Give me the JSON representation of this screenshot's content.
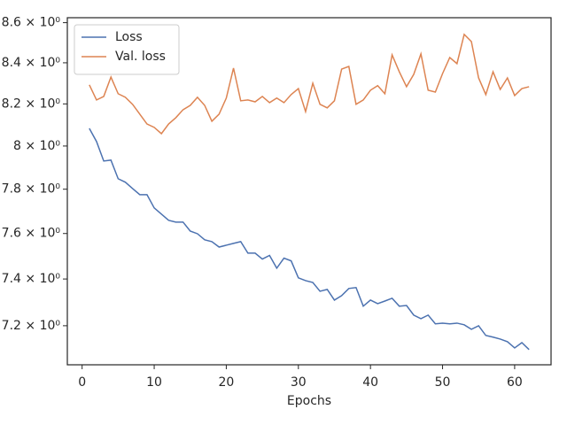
{
  "chart_data": {
    "type": "line",
    "xlabel": "Epochs",
    "yscale": "log",
    "legend": "upper left",
    "x": [
      1,
      2,
      3,
      4,
      5,
      6,
      7,
      8,
      9,
      10,
      11,
      12,
      13,
      14,
      15,
      16,
      17,
      18,
      19,
      20,
      21,
      22,
      23,
      24,
      25,
      26,
      27,
      28,
      29,
      30,
      31,
      32,
      33,
      34,
      35,
      36,
      37,
      38,
      39,
      40,
      41,
      42,
      43,
      44,
      45,
      46,
      47,
      48,
      49,
      50,
      51,
      52,
      53,
      54,
      55,
      56,
      57,
      58,
      59,
      60,
      61,
      62
    ],
    "series": [
      {
        "name": "Loss",
        "color": "#4c72b0",
        "values": [
          8.083,
          8.021,
          7.93,
          7.934,
          7.848,
          7.832,
          7.803,
          7.775,
          7.775,
          7.715,
          7.687,
          7.659,
          7.651,
          7.651,
          7.611,
          7.599,
          7.572,
          7.564,
          7.54,
          7.548,
          7.556,
          7.564,
          7.513,
          7.513,
          7.487,
          7.503,
          7.447,
          7.491,
          7.479,
          7.405,
          7.393,
          7.385,
          7.347,
          7.355,
          7.309,
          7.328,
          7.359,
          7.363,
          7.283,
          7.309,
          7.294,
          7.305,
          7.317,
          7.283,
          7.286,
          7.245,
          7.23,
          7.245,
          7.208,
          7.211,
          7.208,
          7.211,
          7.204,
          7.185,
          7.2,
          7.159,
          7.152,
          7.144,
          7.133,
          7.107,
          7.129,
          7.1
        ]
      },
      {
        "name": "Val. loss",
        "color": "#dd8452",
        "values": [
          8.292,
          8.219,
          8.236,
          8.33,
          8.249,
          8.232,
          8.198,
          8.151,
          8.104,
          8.088,
          8.058,
          8.104,
          8.134,
          8.172,
          8.193,
          8.232,
          8.193,
          8.117,
          8.151,
          8.228,
          8.374,
          8.215,
          8.219,
          8.21,
          8.236,
          8.206,
          8.228,
          8.206,
          8.245,
          8.274,
          8.163,
          8.3,
          8.198,
          8.181,
          8.215,
          8.369,
          8.382,
          8.198,
          8.219,
          8.266,
          8.288,
          8.249,
          8.439,
          8.356,
          8.283,
          8.343,
          8.444,
          8.266,
          8.257,
          8.347,
          8.426,
          8.396,
          8.541,
          8.505,
          8.326,
          8.245,
          8.356,
          8.27,
          8.326,
          8.24,
          8.274,
          8.283
        ]
      }
    ],
    "xlim": [
      -2.05,
      65.05
    ],
    "xticks": [
      0,
      10,
      20,
      30,
      40,
      50,
      60
    ],
    "ylim": [
      7.037,
      8.625
    ],
    "yticks": [
      {
        "value": 7.2,
        "label": "7.2 × 10⁰"
      },
      {
        "value": 7.4,
        "label": "7.4 × 10⁰"
      },
      {
        "value": 7.6,
        "label": "7.6 × 10⁰"
      },
      {
        "value": 7.8,
        "label": "7.8 × 10⁰"
      },
      {
        "value": 8,
        "label": "8 × 10⁰"
      },
      {
        "value": 8.2,
        "label": "8.2 × 10⁰"
      },
      {
        "value": 8.4,
        "label": "8.4 × 10⁰"
      },
      {
        "value": 8.6,
        "label": "8.6 × 10⁰"
      }
    ]
  }
}
